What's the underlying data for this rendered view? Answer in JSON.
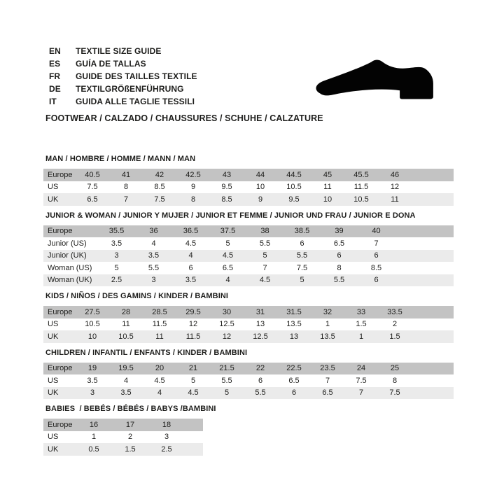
{
  "header": {
    "languages": [
      {
        "code": "EN",
        "title": "TEXTILE SIZE GUIDE"
      },
      {
        "code": "ES",
        "title": "GUÍA DE TALLAS"
      },
      {
        "code": "FR",
        "title": "GUIDE DES TAILLES TEXTILE"
      },
      {
        "code": "DE",
        "title": "TEXTILGRÖßENFÜHRUNG"
      },
      {
        "code": "IT",
        "title": "GUIDA ALLE TAGLIE TESSILI"
      }
    ],
    "category_title": "FOOTWEAR / CALZADO / CHAUSSURES / SCHUHE / CALZATURE",
    "icons": {
      "shoe": "dress-shoe-silhouette"
    }
  },
  "colors": {
    "background": "#ffffff",
    "text": "#1d1d1b",
    "table_header_row_bg": "#c3c3c3",
    "table_alt_row_bg": "#ebebeb",
    "shoe_icon": "#030303"
  },
  "sections": [
    {
      "title": "MAN / HOMBRE / HOMME / MANN / MAN",
      "rows": [
        {
          "label": "Europe",
          "values": [
            "40.5",
            "41",
            "42",
            "42.5",
            "43",
            "44",
            "44.5",
            "45",
            "45.5",
            "46"
          ]
        },
        {
          "label": "US",
          "values": [
            "7.5",
            "8",
            "8.5",
            "9",
            "9.5",
            "10",
            "10.5",
            "11",
            "11.5",
            "12"
          ]
        },
        {
          "label": "UK",
          "values": [
            "6.5",
            "7",
            "7.5",
            "8",
            "8.5",
            "9",
            "9.5",
            "10",
            "10.5",
            "11"
          ]
        }
      ]
    },
    {
      "title": "JUNIOR & WOMAN / JUNIOR Y MUJER / JUNIOR ET FEMME / JUNIOR UND FRAU / JUNIOR E DONA",
      "rows": [
        {
          "label": "Europe",
          "values": [
            "35.5",
            "36",
            "36.5",
            "37.5",
            "38",
            "38.5",
            "39",
            "40"
          ]
        },
        {
          "label": "Junior (US)",
          "values": [
            "3.5",
            "4",
            "4.5",
            "5",
            "5.5",
            "6",
            "6.5",
            "7"
          ]
        },
        {
          "label": "Junior (UK)",
          "values": [
            "3",
            "3.5",
            "4",
            "4.5",
            "5",
            "5.5",
            "6",
            "6"
          ]
        },
        {
          "label": "Woman (US)",
          "values": [
            "5",
            "5.5",
            "6",
            "6.5",
            "7",
            "7.5",
            "8",
            "8.5"
          ]
        },
        {
          "label": "Woman (UK)",
          "values": [
            "2.5",
            "3",
            "3.5",
            "4",
            "4.5",
            "5",
            "5.5",
            "6"
          ]
        }
      ]
    },
    {
      "title": "KIDS / NIÑOS / DES GAMINS / KINDER / BAMBINI",
      "rows": [
        {
          "label": "Europe",
          "values": [
            "27.5",
            "28",
            "28.5",
            "29.5",
            "30",
            "31",
            "31.5",
            "32",
            "33",
            "33.5"
          ]
        },
        {
          "label": "US",
          "values": [
            "10.5",
            "11",
            "11.5",
            "12",
            "12.5",
            "13",
            "13.5",
            "1",
            "1.5",
            "2"
          ]
        },
        {
          "label": "UK",
          "values": [
            "10",
            "10.5",
            "11",
            "11.5",
            "12",
            "12.5",
            "13",
            "13.5",
            "1",
            "1.5"
          ]
        }
      ]
    },
    {
      "title": "CHILDREN / INFANTIL / ENFANTS / KINDER / BAMBINI",
      "rows": [
        {
          "label": "Europe",
          "values": [
            "19",
            "19.5",
            "20",
            "21",
            "21.5",
            "22",
            "22.5",
            "23.5",
            "24",
            "25"
          ]
        },
        {
          "label": "US",
          "values": [
            "3.5",
            "4",
            "4.5",
            "5",
            "5.5",
            "6",
            "6.5",
            "7",
            "7.5",
            "8"
          ]
        },
        {
          "label": "UK",
          "values": [
            "3",
            "3.5",
            "4",
            "4.5",
            "5",
            "5.5",
            "6",
            "6.5",
            "7",
            "7.5"
          ]
        }
      ]
    },
    {
      "title": "BABIES  / BEBÉS / BÉBÉS / BABYS /BAMBINI",
      "rows": [
        {
          "label": "Europe",
          "values": [
            "16",
            "17",
            "18"
          ]
        },
        {
          "label": "US",
          "values": [
            "1",
            "2",
            "3"
          ]
        },
        {
          "label": "UK",
          "values": [
            "0.5",
            "1.5",
            "2.5"
          ]
        }
      ]
    }
  ]
}
